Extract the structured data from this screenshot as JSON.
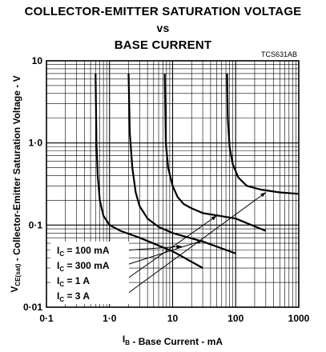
{
  "title": {
    "line1": "COLLECTOR-EMITTER SATURATION VOLTAGE",
    "line2": "vs",
    "line3": "BASE CURRENT"
  },
  "figure_code": "TCS631AB",
  "chart_data": {
    "type": "line",
    "title": "COLLECTOR-EMITTER SATURATION VOLTAGE vs BASE CURRENT",
    "xlabel": "I_B - Base Current - mA",
    "ylabel": "V_CE(sat) - Collector-Emitter Saturation Voltage - V",
    "xscale": "log",
    "yscale": "log",
    "xlim": [
      0.1,
      1000
    ],
    "ylim": [
      0.01,
      10
    ],
    "grid": true,
    "x_tick_labels": [
      "0·1",
      "1·0",
      "10",
      "100",
      "1000"
    ],
    "y_tick_labels": [
      "10",
      "1·0",
      "0·1",
      "0·01"
    ],
    "series": [
      {
        "name": "I_C = 100 mA",
        "x": [
          0.6,
          0.62,
          0.65,
          0.7,
          0.8,
          1.0,
          1.5,
          3,
          10,
          30
        ],
        "y": [
          7,
          1.0,
          0.4,
          0.2,
          0.13,
          0.1,
          0.085,
          0.07,
          0.048,
          0.03
        ]
      },
      {
        "name": "I_C = 300 mA",
        "x": [
          2.0,
          2.1,
          2.3,
          2.6,
          3.0,
          4.0,
          6,
          10,
          30,
          100
        ],
        "y": [
          7,
          1.3,
          0.5,
          0.25,
          0.17,
          0.12,
          0.095,
          0.08,
          0.063,
          0.045
        ]
      },
      {
        "name": "I_C = 1 A",
        "x": [
          7.5,
          7.8,
          8.5,
          10,
          12,
          15,
          20,
          30,
          100,
          300
        ],
        "y": [
          7,
          1.0,
          0.5,
          0.3,
          0.22,
          0.18,
          0.16,
          0.14,
          0.12,
          0.085
        ]
      },
      {
        "name": "I_C = 3 A",
        "x": [
          73,
          75,
          80,
          90,
          110,
          150,
          250,
          500,
          1000
        ],
        "y": [
          7,
          2.0,
          0.9,
          0.55,
          0.38,
          0.3,
          0.27,
          0.25,
          0.24
        ]
      }
    ],
    "legend": {
      "labels": [
        "I_C = 100 mA",
        "I_C = 300 mA",
        "I_C = 1 A",
        "I_C = 3 A"
      ],
      "placement": "bottom-left"
    }
  }
}
